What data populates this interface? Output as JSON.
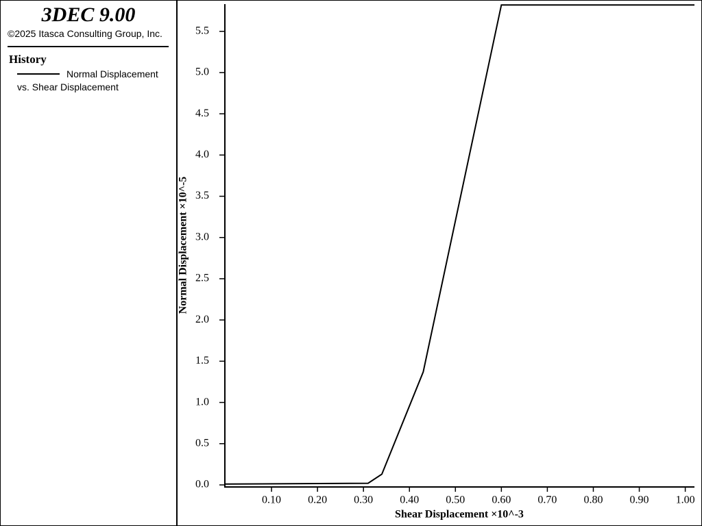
{
  "header": {
    "title": "3DEC 9.00",
    "copyright": "©2025 Itasca Consulting Group, Inc.",
    "section": "History"
  },
  "chart_data": {
    "type": "line",
    "x_label": "Shear Displacement ×10^-3",
    "y_label": "Normal Displacement ×10^-5",
    "xlim": [
      0,
      1.02
    ],
    "ylim": [
      0,
      5.83
    ],
    "xticks": [
      {
        "value": 0.1,
        "label": "0.10"
      },
      {
        "value": 0.2,
        "label": "0.20"
      },
      {
        "value": 0.3,
        "label": "0.30"
      },
      {
        "value": 0.4,
        "label": "0.40"
      },
      {
        "value": 0.5,
        "label": "0.50"
      },
      {
        "value": 0.6,
        "label": "0.60"
      },
      {
        "value": 0.7,
        "label": "0.70"
      },
      {
        "value": 0.8,
        "label": "0.80"
      },
      {
        "value": 0.9,
        "label": "0.90"
      },
      {
        "value": 1.0,
        "label": "1.00"
      }
    ],
    "yticks": [
      {
        "value": 0,
        "label": "0.0"
      },
      0.5,
      {
        "value": 1,
        "label": "1.0"
      },
      1.5,
      {
        "value": 2,
        "label": "2.0"
      },
      2.5,
      {
        "value": 3,
        "label": "3.0"
      },
      3.5,
      {
        "value": 4,
        "label": "4.0"
      },
      4.5,
      {
        "value": 5,
        "label": "5.0"
      },
      5.5
    ],
    "series": [
      {
        "name": "Normal Displacement vs. Shear Displacement",
        "color": "#000000",
        "x": [
          0,
          0.31,
          0.34,
          0.43,
          0.6,
          1.02
        ],
        "values": [
          0.01,
          0.02,
          0.13,
          1.37,
          5.82,
          5.82
        ]
      }
    ]
  }
}
